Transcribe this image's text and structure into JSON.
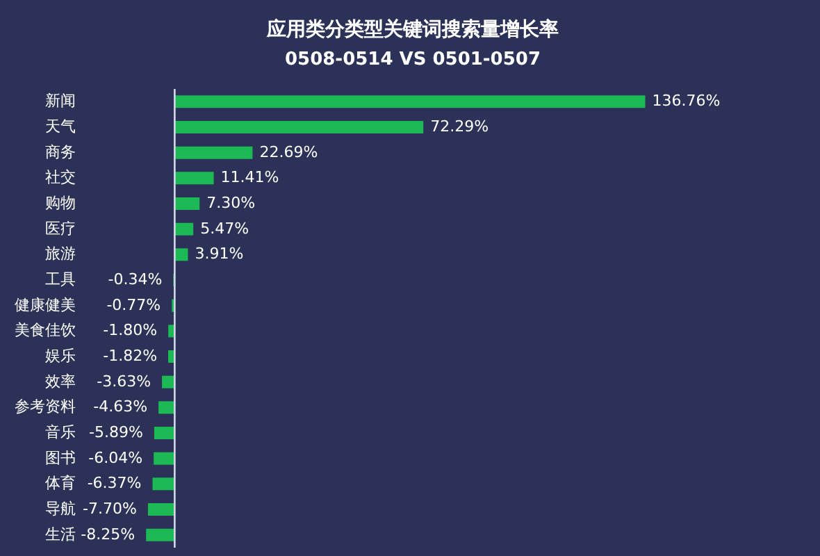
{
  "chart_data": {
    "type": "bar",
    "orientation": "horizontal",
    "title": "应用类分类型关键词搜索量增长率",
    "subtitle": "0508-0514 VS 0501-0507",
    "categories": [
      "新闻",
      "天气",
      "商务",
      "社交",
      "购物",
      "医疗",
      "旅游",
      "工具",
      "健康健美",
      "美食佳饮",
      "娱乐",
      "效率",
      "参考资料",
      "音乐",
      "图书",
      "体育",
      "导航",
      "生活"
    ],
    "values": [
      136.76,
      72.29,
      22.69,
      11.41,
      7.3,
      5.47,
      3.91,
      -0.34,
      -0.77,
      -1.8,
      -1.82,
      -3.63,
      -4.63,
      -5.89,
      -6.04,
      -6.37,
      -7.7,
      -8.25
    ],
    "value_labels": [
      "136.76%",
      "72.29%",
      "22.69%",
      "11.41%",
      "7.30%",
      "5.47%",
      "3.91%",
      "-0.34%",
      "-0.77%",
      "-1.80%",
      "-1.82%",
      "-3.63%",
      "-4.63%",
      "-5.89%",
      "-6.04%",
      "-6.37%",
      "-7.70%",
      "-8.25%"
    ],
    "color": "#1db954",
    "grid": false
  }
}
